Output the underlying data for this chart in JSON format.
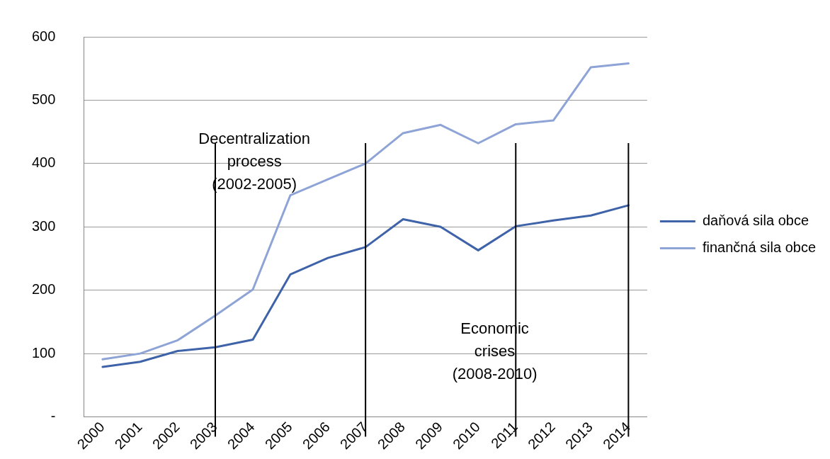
{
  "chart_data": {
    "type": "line",
    "categories": [
      "2000",
      "2001",
      "2002",
      "2003",
      "2004",
      "2005",
      "2006",
      "2007",
      "2008",
      "2009",
      "2010",
      "2011",
      "2012",
      "2013",
      "2014"
    ],
    "series": [
      {
        "name": "daňová sila obce",
        "color": "#3f63a8",
        "values": [
          79,
          87,
          104,
          110,
          122,
          225,
          251,
          268,
          312,
          300,
          263,
          301,
          310,
          318,
          334
        ]
      },
      {
        "name": "finančná sila obce",
        "color": "#8ea3d6",
        "values": [
          91,
          100,
          121,
          160,
          201,
          350,
          375,
          400,
          448,
          461,
          432,
          462,
          468,
          552,
          558
        ]
      }
    ],
    "ylim": [
      0,
      600
    ],
    "yticks": [
      {
        "value": 0,
        "label": "-"
      },
      100,
      200,
      300,
      400,
      500,
      600
    ],
    "grid": "y",
    "legend": "right",
    "marker": "none",
    "line_style": "solid",
    "ref_lines": [
      {
        "axis": "x",
        "value": "2003",
        "color": "#000000"
      },
      {
        "axis": "x",
        "value": "2007",
        "color": "#000000"
      },
      {
        "axis": "x",
        "value": "2011",
        "color": "#000000"
      },
      {
        "axis": "x",
        "value": "2014",
        "color": "#000000"
      }
    ],
    "annotations": [
      "Decentralization\nprocess\n(2002-2005)",
      "Economic\ncrises\n(2008-2010)"
    ]
  }
}
